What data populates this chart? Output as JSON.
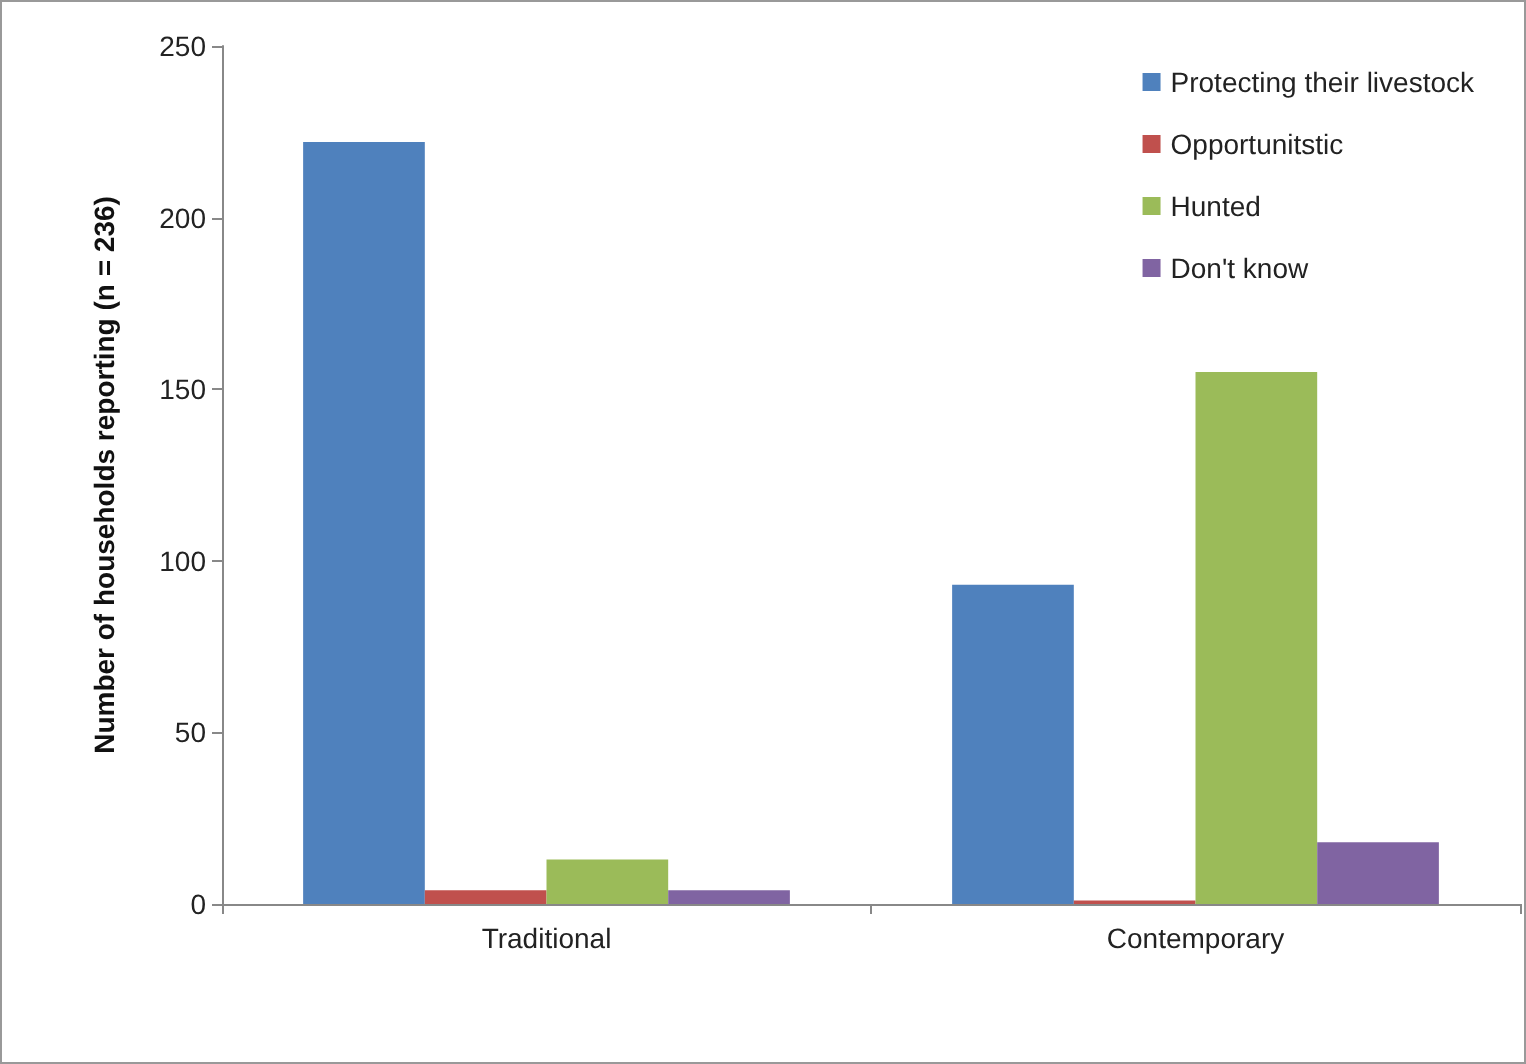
{
  "chart_data": {
    "type": "bar",
    "ylabel": "Number of households reporting (n = 236)",
    "categories": [
      "Traditional",
      "Contemporary"
    ],
    "series": [
      {
        "name": "Protecting their livestock",
        "color": "#4f81bd",
        "values": [
          222,
          93
        ]
      },
      {
        "name": "Opportunitstic",
        "color": "#c0504d",
        "values": [
          4,
          1
        ]
      },
      {
        "name": "Hunted",
        "color": "#9bbb59",
        "values": [
          13,
          155
        ]
      },
      {
        "name": "Don't know",
        "color": "#8064a2",
        "values": [
          4,
          18
        ]
      }
    ],
    "ylim": [
      0,
      250
    ],
    "yticks": [
      0,
      50,
      100,
      150,
      200,
      250
    ],
    "grid": false,
    "legend": "top right"
  }
}
